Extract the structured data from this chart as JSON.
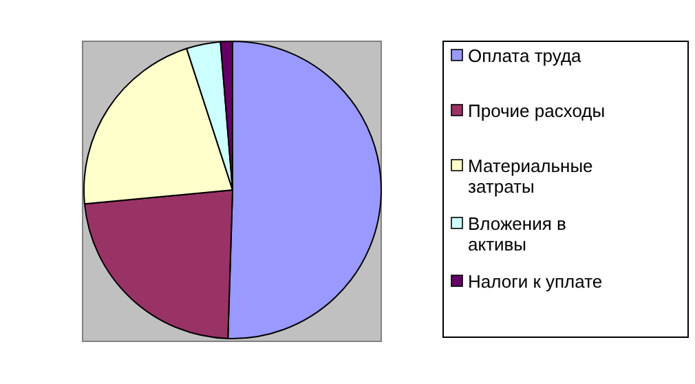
{
  "chart_data": {
    "type": "pie",
    "categories": [
      "Оплата труда",
      "Прочие расходы",
      "Материальные затраты",
      "Вложения в активы",
      "Налоги к уплате"
    ],
    "values": [
      50.5,
      23,
      21.5,
      3.7,
      1.3
    ],
    "colors": [
      "#9999ff",
      "#993366",
      "#ffffcc",
      "#ccffff",
      "#660066"
    ],
    "legend": "right"
  }
}
